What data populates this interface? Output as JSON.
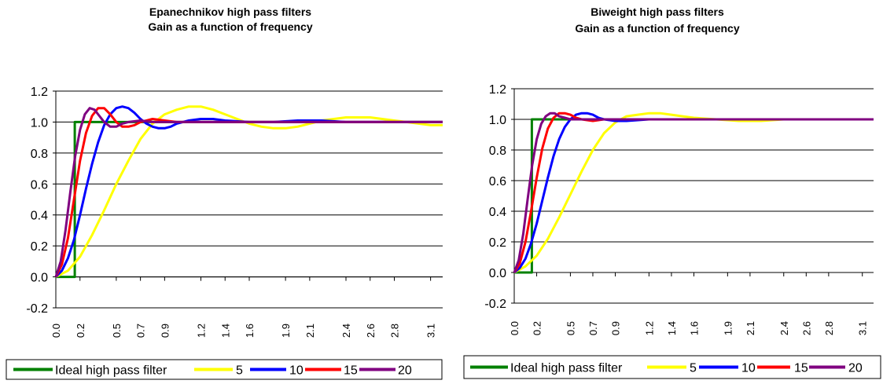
{
  "chart_data": [
    {
      "type": "line",
      "title": "Epanechnikov high pass filters",
      "subtitle": "Gain as a function of frequency",
      "xlabel": "",
      "ylabel": "",
      "ylim": [
        -0.2,
        1.2
      ],
      "xlim": [
        0.0,
        3.2
      ],
      "yticks": [
        "-0.2",
        "0.0",
        "0.2",
        "0.4",
        "0.6",
        "0.8",
        "1.0",
        "1.2"
      ],
      "xticks": [
        "0.0",
        "0.2",
        "0.5",
        "0.7",
        "0.9",
        "1.2",
        "1.4",
        "1.6",
        "1.9",
        "2.1",
        "2.4",
        "2.6",
        "2.8",
        "3.1"
      ],
      "grid": "horizontal",
      "legend": "bottom",
      "series": [
        {
          "name": "Ideal high pass filter",
          "color": "#008000",
          "x": [
            0.0,
            0.157,
            0.157,
            3.2
          ],
          "y": [
            0.0,
            0.0,
            1.0,
            1.0
          ]
        },
        {
          "name": "5",
          "color": "#ffff00",
          "x": [
            0.0,
            0.1,
            0.2,
            0.3,
            0.4,
            0.5,
            0.6,
            0.7,
            0.8,
            0.9,
            1.0,
            1.1,
            1.2,
            1.3,
            1.4,
            1.5,
            1.6,
            1.7,
            1.8,
            1.9,
            2.0,
            2.1,
            2.2,
            2.3,
            2.4,
            2.5,
            2.6,
            2.7,
            2.8,
            2.9,
            3.0,
            3.1,
            3.2
          ],
          "y": [
            0.0,
            0.04,
            0.13,
            0.27,
            0.43,
            0.6,
            0.75,
            0.89,
            0.99,
            1.05,
            1.08,
            1.1,
            1.1,
            1.08,
            1.05,
            1.02,
            0.99,
            0.97,
            0.96,
            0.96,
            0.97,
            0.99,
            1.01,
            1.02,
            1.03,
            1.03,
            1.03,
            1.02,
            1.01,
            1.0,
            0.99,
            0.98,
            0.98
          ]
        },
        {
          "name": "10",
          "color": "#0000ff",
          "x": [
            0.0,
            0.05,
            0.1,
            0.15,
            0.2,
            0.25,
            0.3,
            0.35,
            0.4,
            0.45,
            0.5,
            0.55,
            0.6,
            0.65,
            0.7,
            0.75,
            0.8,
            0.85,
            0.9,
            0.95,
            1.0,
            1.1,
            1.2,
            1.3,
            1.4,
            1.6,
            1.8,
            2.0,
            2.2,
            2.4,
            2.6,
            2.8,
            3.0,
            3.2
          ],
          "y": [
            0.0,
            0.04,
            0.12,
            0.24,
            0.4,
            0.57,
            0.73,
            0.87,
            0.98,
            1.05,
            1.09,
            1.1,
            1.09,
            1.06,
            1.02,
            0.99,
            0.97,
            0.96,
            0.96,
            0.97,
            0.99,
            1.01,
            1.02,
            1.02,
            1.01,
            1.0,
            1.0,
            1.01,
            1.01,
            1.0,
            1.0,
            1.0,
            1.0,
            1.0
          ]
        },
        {
          "name": "15",
          "color": "#ff0000",
          "x": [
            0.0,
            0.05,
            0.1,
            0.15,
            0.2,
            0.25,
            0.3,
            0.35,
            0.4,
            0.45,
            0.5,
            0.55,
            0.6,
            0.65,
            0.7,
            0.8,
            0.9,
            1.0,
            1.2,
            1.4,
            1.6,
            1.8,
            2.0,
            2.2,
            2.4,
            2.6,
            2.8,
            3.0,
            3.2
          ],
          "y": [
            0.0,
            0.08,
            0.25,
            0.5,
            0.75,
            0.93,
            1.04,
            1.09,
            1.09,
            1.05,
            1.0,
            0.97,
            0.97,
            0.98,
            1.0,
            1.02,
            1.01,
            1.0,
            1.0,
            1.0,
            1.0,
            1.0,
            1.0,
            1.0,
            1.0,
            1.0,
            1.0,
            1.0,
            1.0
          ]
        },
        {
          "name": "20",
          "color": "#800080",
          "x": [
            0.0,
            0.04,
            0.08,
            0.12,
            0.16,
            0.2,
            0.24,
            0.28,
            0.32,
            0.36,
            0.4,
            0.45,
            0.5,
            0.55,
            0.6,
            0.7,
            0.8,
            0.9,
            1.0,
            1.2,
            1.4,
            1.6,
            1.8,
            2.0,
            2.2,
            2.4,
            2.6,
            2.8,
            3.0,
            3.2
          ],
          "y": [
            0.0,
            0.1,
            0.3,
            0.55,
            0.78,
            0.95,
            1.05,
            1.09,
            1.08,
            1.04,
            1.0,
            0.97,
            0.97,
            0.99,
            1.0,
            1.01,
            1.0,
            1.0,
            1.0,
            1.0,
            1.0,
            1.0,
            1.0,
            1.0,
            1.0,
            1.0,
            1.0,
            1.0,
            1.0,
            1.0
          ]
        }
      ]
    },
    {
      "type": "line",
      "title": "Biweight high pass filters",
      "subtitle": "Gain as a function of frequency",
      "xlabel": "",
      "ylabel": "",
      "ylim": [
        -0.2,
        1.2
      ],
      "xlim": [
        0.0,
        3.2
      ],
      "yticks": [
        "-0.2",
        "0.0",
        "0.2",
        "0.4",
        "0.6",
        "0.8",
        "1.0",
        "1.2"
      ],
      "xticks": [
        "0.0",
        "0.2",
        "0.5",
        "0.7",
        "0.9",
        "1.2",
        "1.4",
        "1.6",
        "1.9",
        "2.1",
        "2.4",
        "2.6",
        "2.8",
        "3.1"
      ],
      "grid": "horizontal",
      "legend": "bottom",
      "series": [
        {
          "name": "Ideal high pass filter",
          "color": "#008000",
          "x": [
            0.0,
            0.157,
            0.157,
            3.2
          ],
          "y": [
            0.0,
            0.0,
            1.0,
            1.0
          ]
        },
        {
          "name": "5",
          "color": "#ffff00",
          "x": [
            0.0,
            0.1,
            0.2,
            0.3,
            0.4,
            0.5,
            0.6,
            0.7,
            0.8,
            0.9,
            1.0,
            1.1,
            1.2,
            1.3,
            1.4,
            1.5,
            1.6,
            1.8,
            2.0,
            2.2,
            2.4,
            2.6,
            2.8,
            3.0,
            3.2
          ],
          "y": [
            0.0,
            0.04,
            0.11,
            0.22,
            0.36,
            0.51,
            0.66,
            0.8,
            0.91,
            0.98,
            1.02,
            1.03,
            1.04,
            1.04,
            1.03,
            1.02,
            1.01,
            1.0,
            0.99,
            0.99,
            1.0,
            1.0,
            1.0,
            1.0,
            1.0
          ]
        },
        {
          "name": "10",
          "color": "#0000ff",
          "x": [
            0.0,
            0.05,
            0.1,
            0.15,
            0.2,
            0.25,
            0.3,
            0.35,
            0.4,
            0.45,
            0.5,
            0.55,
            0.6,
            0.65,
            0.7,
            0.75,
            0.8,
            0.9,
            1.0,
            1.2,
            1.4,
            1.6,
            1.8,
            2.0,
            2.4,
            2.8,
            3.2
          ],
          "y": [
            0.0,
            0.03,
            0.09,
            0.19,
            0.32,
            0.47,
            0.62,
            0.76,
            0.87,
            0.95,
            1.0,
            1.03,
            1.04,
            1.04,
            1.03,
            1.01,
            1.0,
            0.99,
            0.99,
            1.0,
            1.0,
            1.0,
            1.0,
            1.0,
            1.0,
            1.0,
            1.0
          ]
        },
        {
          "name": "15",
          "color": "#ff0000",
          "x": [
            0.0,
            0.05,
            0.1,
            0.15,
            0.2,
            0.25,
            0.3,
            0.35,
            0.4,
            0.45,
            0.5,
            0.55,
            0.6,
            0.7,
            0.8,
            1.0,
            1.2,
            1.6,
            2.0,
            2.4,
            2.8,
            3.2
          ],
          "y": [
            0.0,
            0.06,
            0.2,
            0.4,
            0.62,
            0.81,
            0.94,
            1.01,
            1.04,
            1.04,
            1.03,
            1.01,
            1.0,
            0.99,
            1.0,
            1.0,
            1.0,
            1.0,
            1.0,
            1.0,
            1.0,
            1.0
          ]
        },
        {
          "name": "20",
          "color": "#800080",
          "x": [
            0.0,
            0.04,
            0.08,
            0.12,
            0.16,
            0.2,
            0.24,
            0.28,
            0.32,
            0.36,
            0.4,
            0.45,
            0.5,
            0.6,
            0.7,
            0.8,
            1.0,
            1.2,
            1.6,
            2.0,
            2.4,
            2.8,
            3.2
          ],
          "y": [
            0.0,
            0.08,
            0.25,
            0.48,
            0.7,
            0.87,
            0.97,
            1.02,
            1.04,
            1.04,
            1.02,
            1.01,
            1.0,
            1.0,
            1.0,
            1.0,
            1.0,
            1.0,
            1.0,
            1.0,
            1.0,
            1.0,
            1.0
          ]
        }
      ]
    }
  ]
}
